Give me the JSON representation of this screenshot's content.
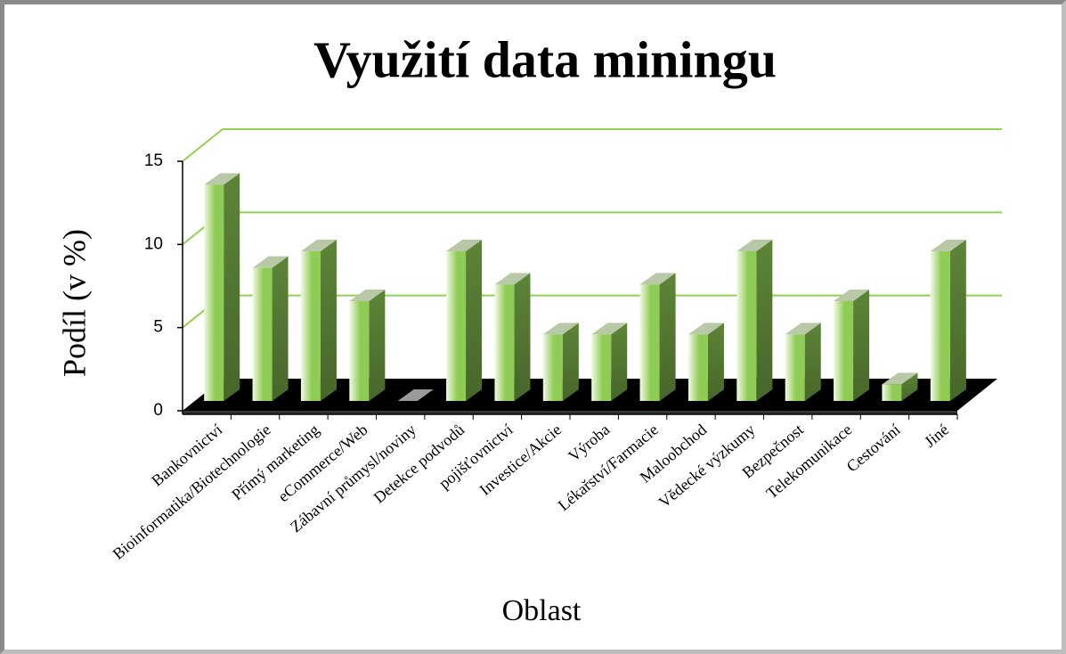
{
  "chart_data": {
    "type": "bar3d",
    "title": "Využití data miningu",
    "x_label": "Oblast",
    "y_label": "Podíl (v %)",
    "categories": [
      "Bankovnictví",
      "Bioinformatika/Biotechnologie",
      "Přímý marketing",
      "eCommerce/Web",
      "Zábavní průmysl/noviny",
      "Detekce podvodů",
      "pojišťovnictví",
      "Investice/Akcie",
      "Výroba",
      "Lékařství/Farmacie",
      "Maloobchod",
      "Vědecké výzkumy",
      "Bezpečnost",
      "Telekomunikace",
      "Cestování",
      "Jiné"
    ],
    "values": [
      13,
      8,
      9,
      6,
      0,
      9,
      7,
      4,
      4,
      7,
      4,
      9,
      4,
      6,
      1,
      9
    ],
    "color": "#8fcc55",
    "grid_color": "#92d050",
    "ylim": [
      0,
      15
    ],
    "yticks": [
      0,
      5,
      10,
      15
    ],
    "grid": true
  }
}
